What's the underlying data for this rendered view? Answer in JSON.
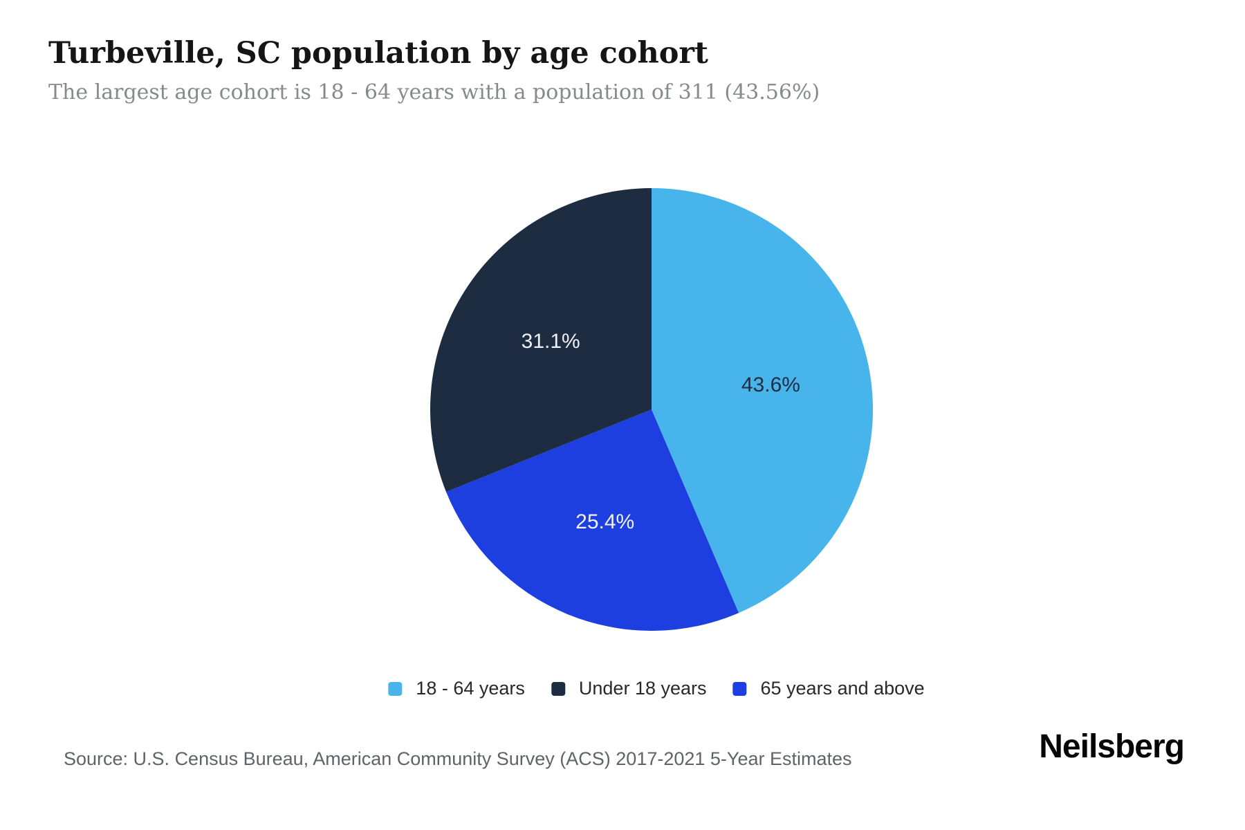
{
  "header": {
    "title": "Turbeville, SC population by age cohort",
    "subtitle": "The largest age cohort is 18 - 64 years with a population of 311 (43.56%)"
  },
  "chart_data": {
    "type": "pie",
    "title": "Turbeville, SC population by age cohort",
    "start_angle_deg": 0,
    "direction": "clockwise",
    "unit": "percent",
    "slices": [
      {
        "label": "18 - 64 years",
        "value": 43.6,
        "display_label": "43.6%",
        "color": "#47b4ec",
        "text_color": "#1d2c40"
      },
      {
        "label": "65 years and above",
        "value": 25.4,
        "display_label": "25.4%",
        "color": "#1e3fe0",
        "text_color": "#eef2f7"
      },
      {
        "label": "Under 18 years",
        "value": 31.1,
        "display_label": "31.1%",
        "color": "#1d2c40",
        "text_color": "#eef2f7"
      }
    ],
    "highlight": {
      "largest_cohort": "18 - 64 years",
      "largest_population": 311,
      "largest_share_pct": 43.56
    },
    "legend_position": "bottom"
  },
  "legend": {
    "items": [
      {
        "label": "18 - 64 years",
        "color": "#47b4ec"
      },
      {
        "label": "Under 18 years",
        "color": "#1d2c40"
      },
      {
        "label": "65 years and above",
        "color": "#1e3fe0"
      }
    ]
  },
  "footer": {
    "source": "Source: U.S. Census Bureau, American Community Survey (ACS) 2017-2021 5-Year Estimates",
    "brand": "Neilsberg"
  }
}
